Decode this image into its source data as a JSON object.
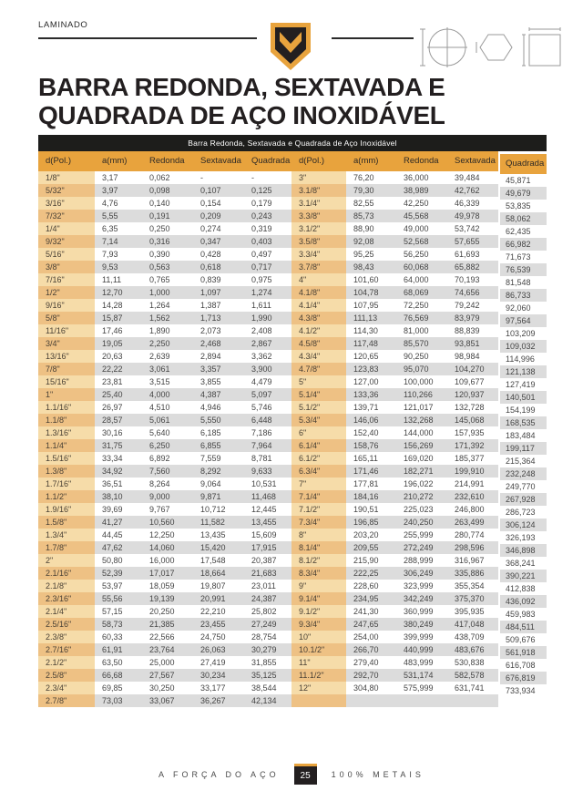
{
  "page": {
    "category_label": "LAMINADO",
    "title_line1": "BARRA REDONDA, SEXTAVADA E",
    "title_line2": "QUADRADA DE AÇO INOXIDÁVEL",
    "footer": {
      "slogan": "A FORÇA DO AÇO",
      "page_number": "25",
      "brand": "100% METAIS"
    }
  },
  "icons": {
    "logo": "brand-shield-m",
    "diagrams": [
      "round-bar-section",
      "hexagonal-bar-section",
      "square-bar-section"
    ]
  },
  "colors": {
    "accent_gold": "#E8A33D",
    "caption_bar_bg": "#1D1D1B",
    "row_stripe_gray": "#DCDCDC",
    "size_col_light": "#F6DCA9",
    "size_col_dark": "#EEC184",
    "text_dark": "#231F20"
  },
  "table": {
    "caption": "Barra Redonda, Sextavada e Quadrada de Aço Inoxidável",
    "columns": [
      "d(Pol.)",
      "a(mm)",
      "Redonda",
      "Sextavada",
      "Quadrada",
      "d(Pol.)",
      "a(mm)",
      "Redonda",
      "Sextavada",
      "Quadrada"
    ],
    "rows": [
      [
        "1/8\"",
        "3,17",
        "0,062",
        "-",
        "-",
        "3\"",
        "76,20",
        "36,000",
        "39,484",
        "45,871"
      ],
      [
        "5/32\"",
        "3,97",
        "0,098",
        "0,107",
        "0,125",
        "3.1/8\"",
        "79,30",
        "38,989",
        "42,762",
        "49,679"
      ],
      [
        "3/16\"",
        "4,76",
        "0,140",
        "0,154",
        "0,179",
        "3.1/4\"",
        "82,55",
        "42,250",
        "46,339",
        "53,835"
      ],
      [
        "7/32\"",
        "5,55",
        "0,191",
        "0,209",
        "0,243",
        "3.3/8\"",
        "85,73",
        "45,568",
        "49,978",
        "58,062"
      ],
      [
        "1/4\"",
        "6,35",
        "0,250",
        "0,274",
        "0,319",
        "3.1/2\"",
        "88,90",
        "49,000",
        "53,742",
        "62,435"
      ],
      [
        "9/32\"",
        "7,14",
        "0,316",
        "0,347",
        "0,403",
        "3.5/8\"",
        "92,08",
        "52,568",
        "57,655",
        "66,982"
      ],
      [
        "5/16\"",
        "7,93",
        "0,390",
        "0,428",
        "0,497",
        "3.3/4\"",
        "95,25",
        "56,250",
        "61,693",
        "71,673"
      ],
      [
        "3/8\"",
        "9,53",
        "0,563",
        "0,618",
        "0,717",
        "3.7/8\"",
        "98,43",
        "60,068",
        "65,882",
        "76,539"
      ],
      [
        "7/16\"",
        "11,11",
        "0,765",
        "0,839",
        "0,975",
        "4\"",
        "101,60",
        "64,000",
        "70,193",
        "81,548"
      ],
      [
        "1/2\"",
        "12,70",
        "1,000",
        "1,097",
        "1,274",
        "4.1/8\"",
        "104,78",
        "68,069",
        "74,656",
        "86,733"
      ],
      [
        "9/16\"",
        "14,28",
        "1,264",
        "1,387",
        "1,611",
        "4.1/4\"",
        "107,95",
        "72,250",
        "79,242",
        "92,060"
      ],
      [
        "5/8\"",
        "15,87",
        "1,562",
        "1,713",
        "1,990",
        "4.3/8\"",
        "111,13",
        "76,569",
        "83,979",
        "97,564"
      ],
      [
        "11/16\"",
        "17,46",
        "1,890",
        "2,073",
        "2,408",
        "4.1/2\"",
        "114,30",
        "81,000",
        "88,839",
        "103,209"
      ],
      [
        "3/4\"",
        "19,05",
        "2,250",
        "2,468",
        "2,867",
        "4.5/8\"",
        "117,48",
        "85,570",
        "93,851",
        "109,032"
      ],
      [
        "13/16\"",
        "20,63",
        "2,639",
        "2,894",
        "3,362",
        "4.3/4\"",
        "120,65",
        "90,250",
        "98,984",
        "114,996"
      ],
      [
        "7/8\"",
        "22,22",
        "3,061",
        "3,357",
        "3,900",
        "4.7/8\"",
        "123,83",
        "95,070",
        "104,270",
        "121,138"
      ],
      [
        "15/16\"",
        "23,81",
        "3,515",
        "3,855",
        "4,479",
        "5\"",
        "127,00",
        "100,000",
        "109,677",
        "127,419"
      ],
      [
        "1\"",
        "25,40",
        "4,000",
        "4,387",
        "5,097",
        "5.1/4\"",
        "133,36",
        "110,266",
        "120,937",
        "140,501"
      ],
      [
        "1.1/16\"",
        "26,97",
        "4,510",
        "4,946",
        "5,746",
        "5.1/2\"",
        "139,71",
        "121,017",
        "132,728",
        "154,199"
      ],
      [
        "1.1/8\"",
        "28,57",
        "5,061",
        "5,550",
        "6,448",
        "5.3/4\"",
        "146,06",
        "132,268",
        "145,068",
        "168,535"
      ],
      [
        "1.3/16\"",
        "30,16",
        "5,640",
        "6,185",
        "7,186",
        "6\"",
        "152,40",
        "144,000",
        "157,935",
        "183,484"
      ],
      [
        "1.1/4\"",
        "31,75",
        "6,250",
        "6,855",
        "7,964",
        "6.1/4\"",
        "158,76",
        "156,269",
        "171,392",
        "199,117"
      ],
      [
        "1.5/16\"",
        "33,34",
        "6,892",
        "7,559",
        "8,781",
        "6.1/2\"",
        "165,11",
        "169,020",
        "185,377",
        "215,364"
      ],
      [
        "1.3/8\"",
        "34,92",
        "7,560",
        "8,292",
        "9,633",
        "6.3/4\"",
        "171,46",
        "182,271",
        "199,910",
        "232,248"
      ],
      [
        "1.7/16\"",
        "36,51",
        "8,264",
        "9,064",
        "10,531",
        "7\"",
        "177,81",
        "196,022",
        "214,991",
        "249,770"
      ],
      [
        "1.1/2\"",
        "38,10",
        "9,000",
        "9,871",
        "11,468",
        "7.1/4\"",
        "184,16",
        "210,272",
        "232,610",
        "267,928"
      ],
      [
        "1.9/16\"",
        "39,69",
        "9,767",
        "10,712",
        "12,445",
        "7.1/2\"",
        "190,51",
        "225,023",
        "246,800",
        "286,723"
      ],
      [
        "1.5/8\"",
        "41,27",
        "10,560",
        "11,582",
        "13,455",
        "7.3/4\"",
        "196,85",
        "240,250",
        "263,499",
        "306,124"
      ],
      [
        "1.3/4\"",
        "44,45",
        "12,250",
        "13,435",
        "15,609",
        "8\"",
        "203,20",
        "255,999",
        "280,774",
        "326,193"
      ],
      [
        "1.7/8\"",
        "47,62",
        "14,060",
        "15,420",
        "17,915",
        "8.1/4\"",
        "209,55",
        "272,249",
        "298,596",
        "346,898"
      ],
      [
        "2\"",
        "50,80",
        "16,000",
        "17,548",
        "20,387",
        "8.1/2\"",
        "215,90",
        "288,999",
        "316,967",
        "368,241"
      ],
      [
        "2.1/16\"",
        "52,39",
        "17,017",
        "18,664",
        "21,683",
        "8.3/4\"",
        "222,25",
        "306,249",
        "335,886",
        "390,221"
      ],
      [
        "2.1/8\"",
        "53,97",
        "18,059",
        "19,807",
        "23,011",
        "9\"",
        "228,60",
        "323,999",
        "355,354",
        "412,838"
      ],
      [
        "2.3/16\"",
        "55,56",
        "19,139",
        "20,991",
        "24,387",
        "9.1/4\"",
        "234,95",
        "342,249",
        "375,370",
        "436,092"
      ],
      [
        "2.1/4\"",
        "57,15",
        "20,250",
        "22,210",
        "25,802",
        "9.1/2\"",
        "241,30",
        "360,999",
        "395,935",
        "459,983"
      ],
      [
        "2.5/16\"",
        "58,73",
        "21,385",
        "23,455",
        "27,249",
        "9.3/4\"",
        "247,65",
        "380,249",
        "417,048",
        "484,511"
      ],
      [
        "2.3/8\"",
        "60,33",
        "22,566",
        "24,750",
        "28,754",
        "10\"",
        "254,00",
        "399,999",
        "438,709",
        "509,676"
      ],
      [
        "2.7/16\"",
        "61,91",
        "23,764",
        "26,063",
        "30,279",
        "10.1/2\"",
        "266,70",
        "440,999",
        "483,676",
        "561,918"
      ],
      [
        "2.1/2\"",
        "63,50",
        "25,000",
        "27,419",
        "31,855",
        "11\"",
        "279,40",
        "483,999",
        "530,838",
        "616,708"
      ],
      [
        "2.5/8\"",
        "66,68",
        "27,567",
        "30,234",
        "35,125",
        "11.1/2\"",
        "292,70",
        "531,174",
        "582,578",
        "676,819"
      ],
      [
        "2.3/4\"",
        "69,85",
        "30,250",
        "33,177",
        "38,544",
        "12\"",
        "304,80",
        "575,999",
        "631,741",
        "733,934"
      ],
      [
        "2.7/8\"",
        "73,03",
        "33,067",
        "36,267",
        "42,134",
        "",
        "",
        "",
        "",
        ""
      ]
    ]
  }
}
